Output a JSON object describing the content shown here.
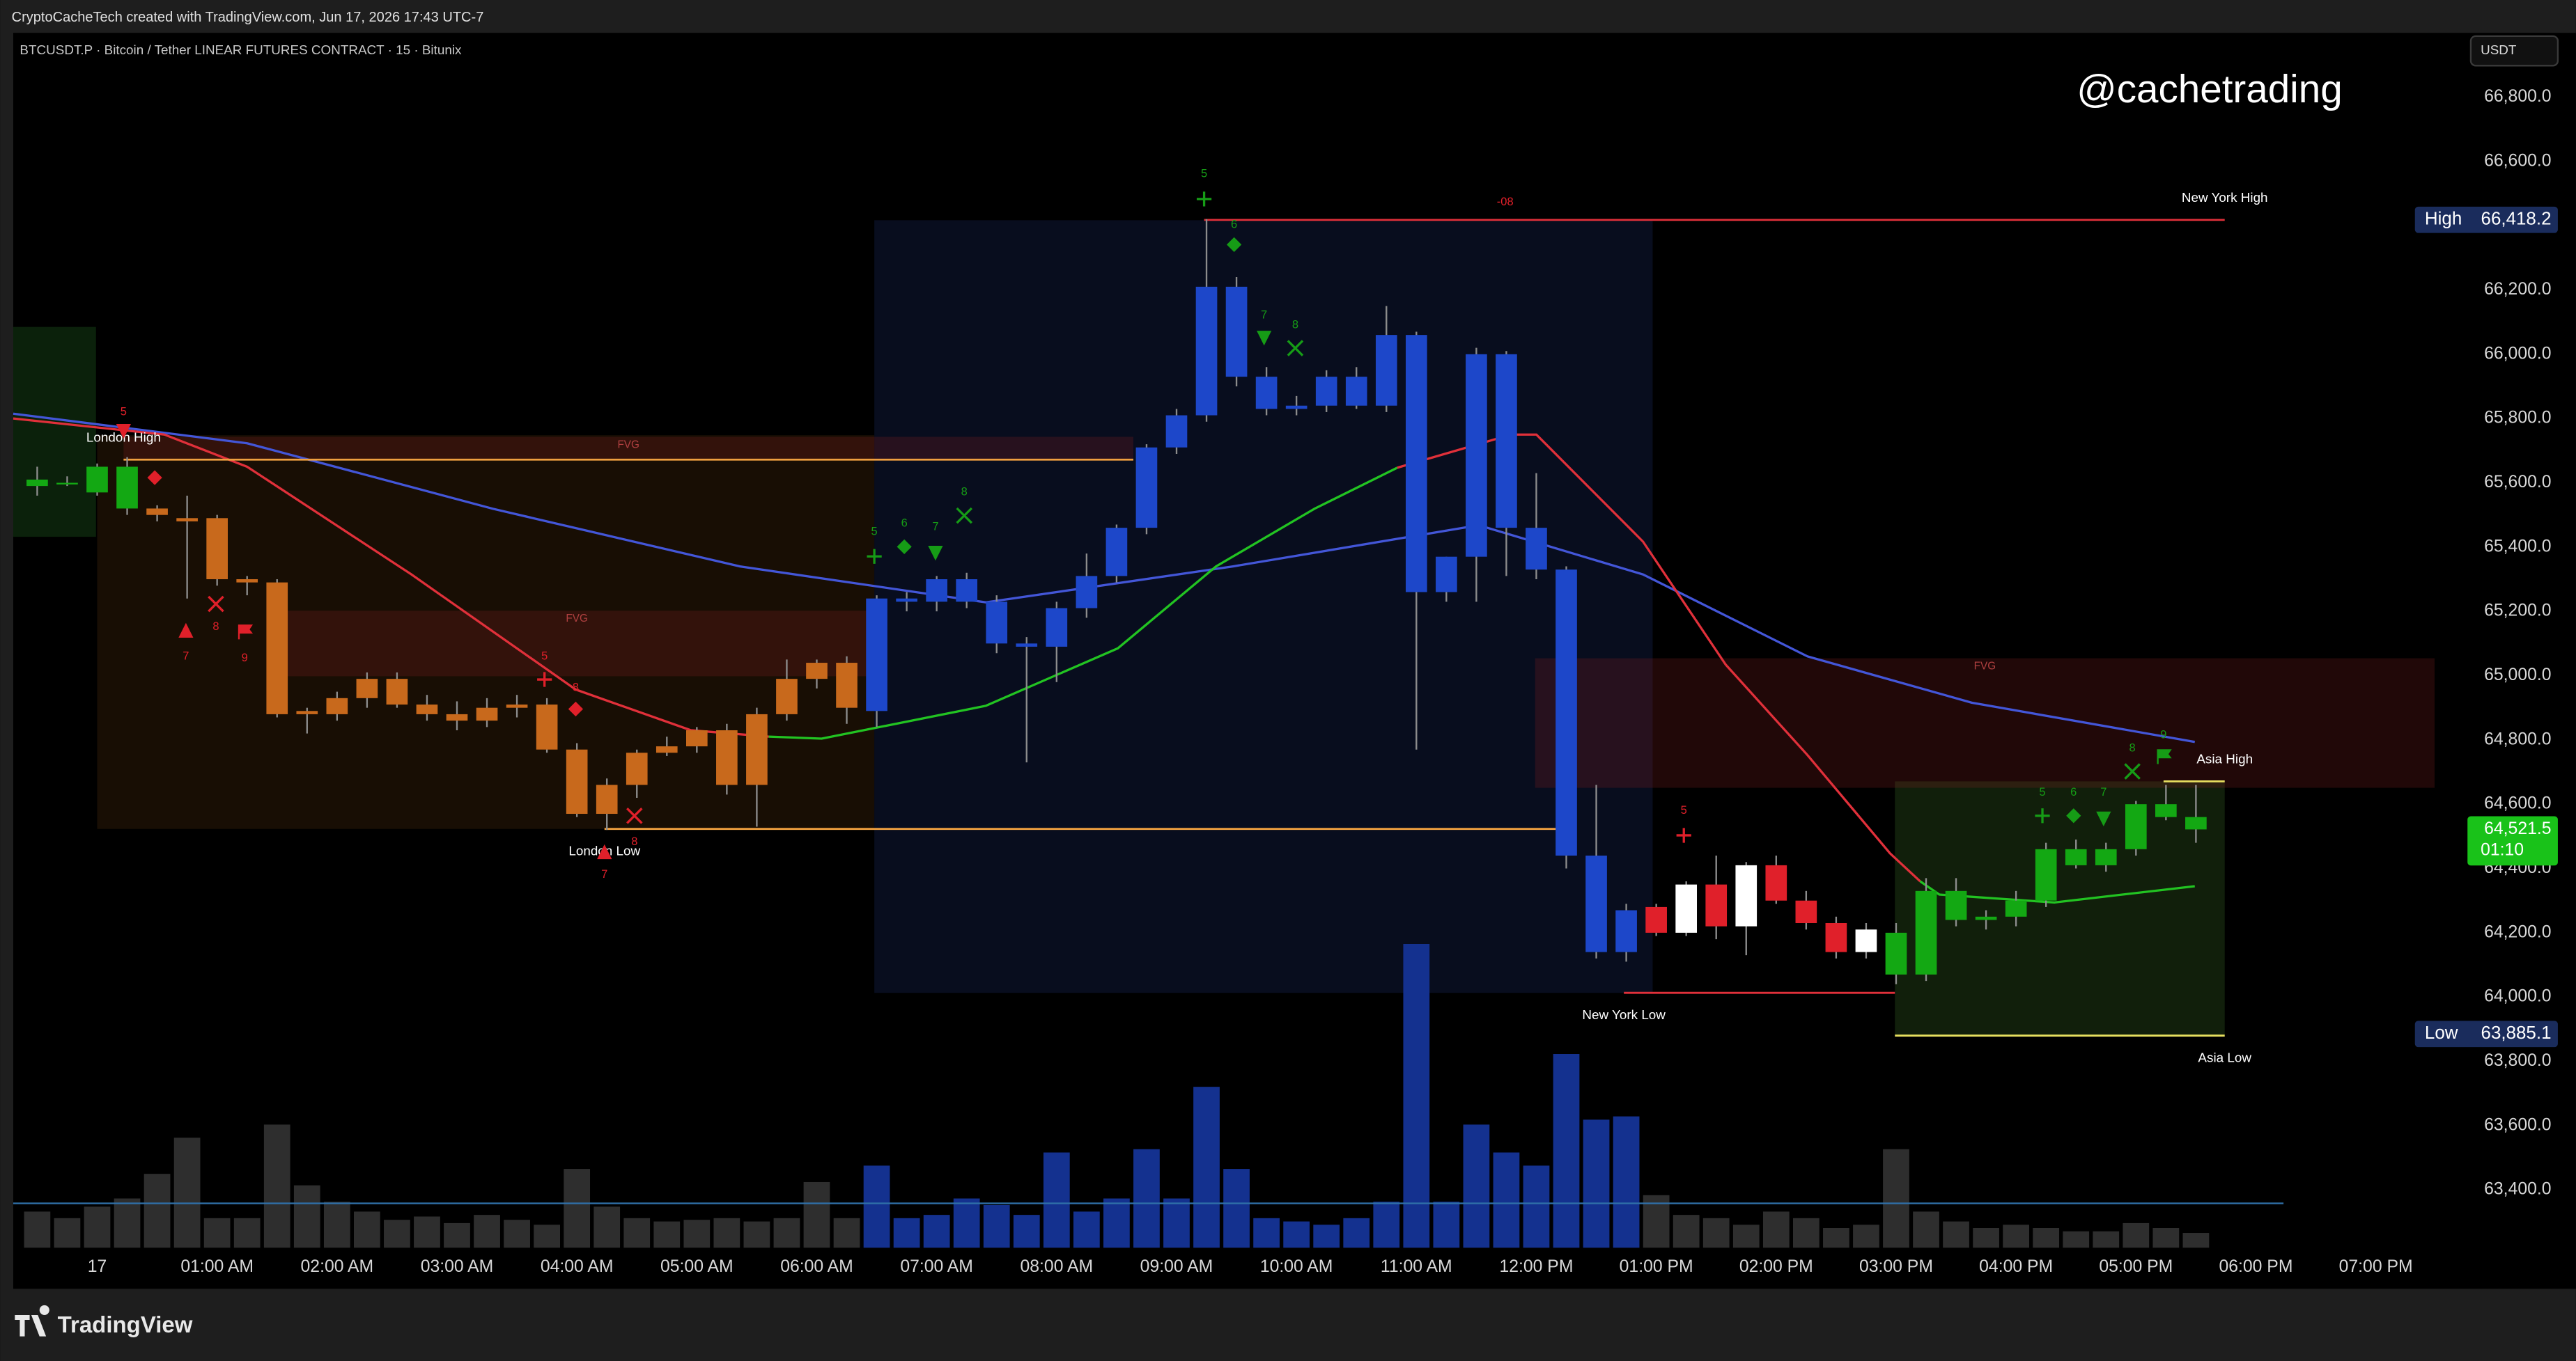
{
  "header": {
    "credit": "CryptoCacheTech created with TradingView.com, Jun 17, 2026 17:43 UTC-7",
    "footer_brand": "TradingView"
  },
  "chart_data": {
    "type": "candlestick",
    "title": "BTCUSDT.P · Bitcoin / Tether LINEAR FUTURES CONTRACT · 15 · Bitunix",
    "watermark": "@cachetrading",
    "currency": "USDT",
    "x": [
      -0.5,
      -0.25,
      0,
      0.25,
      0.5,
      0.75,
      1,
      1.25,
      1.5,
      1.75,
      2,
      2.25,
      2.5,
      2.75,
      3,
      3.25,
      3.5,
      3.75,
      4,
      4.25,
      4.5,
      4.75,
      5,
      5.25,
      5.5,
      5.75,
      6,
      6.25,
      6.5,
      6.75,
      7,
      7.25,
      7.5,
      7.75,
      8,
      8.25,
      8.5,
      8.75,
      9,
      9.25,
      9.5,
      9.75,
      10,
      10.25,
      10.5,
      10.75,
      11,
      11.25,
      11.5,
      11.75,
      12,
      12.25,
      12.5,
      12.75,
      13,
      13.25,
      13.5,
      13.75,
      14,
      14.25,
      14.5,
      14.75,
      15,
      15.25,
      15.5,
      15.75,
      16,
      16.25,
      16.5,
      16.75,
      17,
      17.25,
      17.5
    ],
    "open": [
      65590,
      65600,
      65570,
      65650,
      65520,
      65490,
      65490,
      65300,
      65290,
      64880,
      64880,
      64930,
      64990,
      64910,
      64880,
      64860,
      64900,
      64910,
      64770,
      64570,
      64660,
      64760,
      64780,
      64830,
      64660,
      64880,
      64990,
      64900,
      64890,
      65240,
      65230,
      65300,
      65230,
      65100,
      65090,
      65210,
      65310,
      65460,
      65710,
      65810,
      66210,
      65930,
      65830,
      65840,
      65930,
      65840,
      66060,
      65260,
      65370,
      66000,
      65460,
      65330,
      64440,
      64140,
      64280,
      64200,
      64350,
      64220,
      64410,
      64300,
      64230,
      64140,
      64200,
      64070,
      64330,
      64240,
      64250,
      64300,
      64410,
      64410,
      64460,
      64600,
      64560
    ],
    "high": [
      65650,
      65620,
      65660,
      65680,
      65530,
      65560,
      65500,
      65310,
      65300,
      64900,
      64950,
      65010,
      65010,
      64940,
      64920,
      64930,
      64940,
      64930,
      64790,
      64680,
      64770,
      64810,
      64840,
      64850,
      64900,
      65050,
      65050,
      65060,
      65250,
      65260,
      65310,
      65320,
      65250,
      65120,
      65230,
      65380,
      65470,
      65720,
      65830,
      66420,
      66240,
      65960,
      65870,
      65950,
      65960,
      66150,
      66070,
      65370,
      66020,
      66010,
      65630,
      65340,
      64660,
      64290,
      64290,
      64360,
      64440,
      64420,
      64440,
      64330,
      64250,
      64230,
      64230,
      64370,
      64370,
      64270,
      64330,
      64480,
      64490,
      64480,
      64610,
      64660,
      64660
    ],
    "low": [
      65560,
      65590,
      65560,
      65500,
      65480,
      65240,
      65280,
      65250,
      64870,
      64820,
      64860,
      64900,
      64900,
      64860,
      64830,
      64840,
      64870,
      64760,
      64560,
      64520,
      64620,
      64750,
      64760,
      64630,
      64530,
      64860,
      64960,
      64850,
      64840,
      65200,
      65200,
      65210,
      65070,
      64730,
      64980,
      65180,
      65290,
      65440,
      65690,
      65790,
      65900,
      65810,
      65810,
      65820,
      65830,
      65820,
      64770,
      65230,
      65230,
      65310,
      65300,
      64400,
      64120,
      64110,
      64190,
      64190,
      64180,
      64130,
      64290,
      64210,
      64120,
      64120,
      64040,
      64050,
      64220,
      64210,
      64220,
      64280,
      64400,
      64390,
      64440,
      64550,
      64480
    ],
    "close": [
      65610,
      65600,
      65650,
      65520,
      65500,
      65480,
      65300,
      65290,
      64880,
      64890,
      64930,
      64990,
      64910,
      64880,
      64860,
      64900,
      64910,
      64770,
      64570,
      64660,
      64760,
      64780,
      64830,
      64660,
      64880,
      64990,
      65040,
      65040,
      65240,
      65230,
      65300,
      65230,
      65100,
      65090,
      65210,
      65310,
      65460,
      65710,
      65810,
      66210,
      65930,
      65830,
      65840,
      65930,
      65840,
      66060,
      65260,
      65370,
      66000,
      65460,
      65330,
      64440,
      64140,
      64270,
      64200,
      64350,
      64220,
      64410,
      64300,
      64230,
      64140,
      64210,
      64070,
      64330,
      64240,
      64250,
      64300,
      64460,
      64460,
      64460,
      64600,
      64560,
      64521.5
    ],
    "colors": [
      "#13a813",
      "#13a813",
      "#13a813",
      "#13a813",
      "#c8691c",
      "#c8691c",
      "#c8691c",
      "#c8691c",
      "#c8691c",
      "#c8691c",
      "#c8691c",
      "#c8691c",
      "#c8691c",
      "#c8691c",
      "#c8691c",
      "#c8691c",
      "#c8691c",
      "#c8691c",
      "#c8691c",
      "#c8691c",
      "#c8691c",
      "#c8691c",
      "#c8691c",
      "#c8691c",
      "#c8691c",
      "#c8691c",
      "#c8691c",
      "#c8691c",
      "#1d47c9",
      "#1d47c9",
      "#1d47c9",
      "#1d47c9",
      "#1d47c9",
      "#1d47c9",
      "#1d47c9",
      "#1d47c9",
      "#1d47c9",
      "#1d47c9",
      "#1d47c9",
      "#1d47c9",
      "#1d47c9",
      "#1d47c9",
      "#1d47c9",
      "#1d47c9",
      "#1d47c9",
      "#1d47c9",
      "#1d47c9",
      "#1d47c9",
      "#1d47c9",
      "#1d47c9",
      "#1d47c9",
      "#1d47c9",
      "#1d47c9",
      "#1d47c9",
      "#e0202a",
      "#ffffff",
      "#e0202a",
      "#ffffff",
      "#e0202a",
      "#e0202a",
      "#e0202a",
      "#ffffff",
      "#13a813",
      "#13a813",
      "#13a813",
      "#13a813",
      "#13a813",
      "#13a813",
      "#13a813",
      "#13a813",
      "#13a813",
      "#13a813",
      "#13a813"
    ],
    "wick_color": "#8c8c8c",
    "volume": [
      22,
      18,
      25,
      30,
      45,
      67,
      18,
      18,
      75,
      38,
      28,
      22,
      17,
      19,
      15,
      20,
      17,
      14,
      48,
      25,
      18,
      16,
      17,
      18,
      16,
      18,
      40,
      18,
      50,
      18,
      20,
      30,
      26,
      20,
      58,
      22,
      30,
      60,
      30,
      98,
      48,
      18,
      16,
      14,
      18,
      28,
      185,
      28,
      75,
      58,
      50,
      118,
      78,
      80,
      32,
      20,
      18,
      14,
      22,
      18,
      12,
      14,
      60,
      22,
      16,
      12,
      14,
      12,
      10,
      10,
      15,
      12,
      9
    ],
    "volume_color": "#2e2e2e",
    "volume_highlight": {
      "when_candle": "#1d47c9",
      "color": "#14318f"
    },
    "xlim": [
      -0.7,
      19.6
    ],
    "xticks": [
      {
        "value": 0,
        "label": "17"
      },
      {
        "value": 1,
        "label": "01:00 AM"
      },
      {
        "value": 2,
        "label": "02:00 AM"
      },
      {
        "value": 3,
        "label": "03:00 AM"
      },
      {
        "value": 4,
        "label": "04:00 AM"
      },
      {
        "value": 5,
        "label": "05:00 AM"
      },
      {
        "value": 6,
        "label": "06:00 AM"
      },
      {
        "value": 7,
        "label": "07:00 AM"
      },
      {
        "value": 8,
        "label": "08:00 AM"
      },
      {
        "value": 9,
        "label": "09:00 AM"
      },
      {
        "value": 10,
        "label": "10:00 AM"
      },
      {
        "value": 11,
        "label": "11:00 AM"
      },
      {
        "value": 12,
        "label": "12:00 PM"
      },
      {
        "value": 13,
        "label": "01:00 PM"
      },
      {
        "value": 14,
        "label": "02:00 PM"
      },
      {
        "value": 15,
        "label": "03:00 PM"
      },
      {
        "value": 16,
        "label": "04:00 PM"
      },
      {
        "value": 17,
        "label": "05:00 PM"
      },
      {
        "value": 18,
        "label": "06:00 PM"
      },
      {
        "value": 19,
        "label": "07:00 PM"
      }
    ],
    "ylim": [
      63220,
      67000
    ],
    "yticks": [
      {
        "value": 63400,
        "label": "63,400.0"
      },
      {
        "value": 63600,
        "label": "63,600.0"
      },
      {
        "value": 63800,
        "label": "63,800.0"
      },
      {
        "value": 64000,
        "label": "64,000.0"
      },
      {
        "value": 64200,
        "label": "64,200.0"
      },
      {
        "value": 64400,
        "label": "64,400.0"
      },
      {
        "value": 64600,
        "label": "64,600.0"
      },
      {
        "value": 64800,
        "label": "64,800.0"
      },
      {
        "value": 65000,
        "label": "65,000.0"
      },
      {
        "value": 65200,
        "label": "65,200.0"
      },
      {
        "value": 65400,
        "label": "65,400.0"
      },
      {
        "value": 65600,
        "label": "65,600.0"
      },
      {
        "value": 65800,
        "label": "65,800.0"
      },
      {
        "value": 66000,
        "label": "66,000.0"
      },
      {
        "value": 66200,
        "label": "66,200.0"
      },
      {
        "value": 66400,
        "label": "66,400.0"
      },
      {
        "value": 66600,
        "label": "66,600.0"
      },
      {
        "value": 66800,
        "label": "66,800.0"
      }
    ],
    "grid": false,
    "overlays": [
      {
        "color": "#4356d8",
        "x": [
          -0.7,
          1.25,
          3.3,
          5.36,
          7.41,
          9.47,
          11.52,
          12.89,
          14.26,
          15.63,
          17.49
        ],
        "values": [
          65815,
          65723,
          65519,
          65340,
          65228,
          65340,
          65468,
          65315,
          65060,
          64916,
          64794
        ]
      },
      {
        "color": "#e0303a",
        "x": [
          -0.7,
          0.56,
          1.25,
          2.62,
          3.99,
          4.95,
          5.6
        ],
        "values": [
          65800,
          65750,
          65650,
          65315,
          64957,
          64830,
          64810
        ]
      },
      {
        "color": "#22c322",
        "x": [
          5.6,
          6.04,
          7.41,
          8.51,
          9.33,
          10.15,
          10.84
        ],
        "values": [
          64810,
          64804,
          64906,
          65085,
          65340,
          65519,
          65647
        ]
      },
      {
        "color": "#e0303a",
        "x": [
          10.84,
          11.79,
          12,
          12.89,
          13.58,
          14.26,
          14.95,
          15.2
        ],
        "values": [
          65647,
          65750,
          65750,
          65417,
          65034,
          64753,
          64447,
          64360
        ]
      },
      {
        "color": "#22c322",
        "x": [
          15.2,
          15.36,
          16.32,
          17.49
        ],
        "values": [
          64360,
          64319,
          64294,
          64345
        ]
      }
    ],
    "zones": [
      {
        "x": [
          -0.7,
          -0.01
        ],
        "y": [
          65432,
          66085
        ],
        "color": "rgba(40,120,40,0.28)"
      },
      {
        "x": [
          0,
          6.48
        ],
        "y": [
          64523,
          65748
        ],
        "color": "rgba(120,70,20,0.2)"
      },
      {
        "x": [
          6.48,
          12.97
        ],
        "y": [
          64013,
          66417
        ],
        "color": "rgba(30,50,120,0.25)"
      },
      {
        "x": [
          14.99,
          17.74
        ],
        "y": [
          63880,
          64671
        ],
        "color": "rgba(60,110,40,0.28)"
      },
      {
        "x": [
          11.99,
          19.49
        ],
        "y": [
          64651,
          65054
        ],
        "color": "rgba(130,30,30,0.25)",
        "label": "FVG"
      },
      {
        "x": [
          0.22,
          8.64
        ],
        "y": [
          65672,
          65743
        ],
        "color": "rgba(130,30,30,0.25)",
        "label": "FVG"
      },
      {
        "x": [
          1.52,
          6.48
        ],
        "y": [
          64998,
          65202
        ],
        "color": "rgba(130,30,30,0.25)",
        "label": "FVG"
      }
    ],
    "levels": [
      {
        "label": "London High",
        "value": 65672,
        "x": [
          0.22,
          8.64
        ],
        "color": "#f0a040",
        "anchor": "start",
        "side": "above"
      },
      {
        "label": "London Low",
        "value": 64523,
        "x": [
          4.23,
          12.18
        ],
        "color": "#f0a040",
        "anchor": "start",
        "side": "below"
      },
      {
        "label": "New York High",
        "value": 66418,
        "x": [
          9.23,
          17.74
        ],
        "color": "#e0303a",
        "anchor": "end",
        "side": "above"
      },
      {
        "label": "New York Low",
        "value": 64013,
        "x": [
          12.73,
          14.99
        ],
        "color": "#e0303a",
        "anchor": "start",
        "side": "below"
      },
      {
        "label": "Asia High",
        "value": 64671,
        "x": [
          17.23,
          17.74
        ],
        "color": "#e8e060",
        "anchor": "end",
        "side": "above"
      },
      {
        "label": "Asia Low",
        "value": 63880,
        "x": [
          14.99,
          17.74
        ],
        "color": "#e8e060",
        "anchor": "end",
        "side": "below"
      }
    ],
    "signals": [
      {
        "x": 0.22,
        "label": "5",
        "label_price": 65820,
        "shape": "tri-down",
        "shape_price": 65760,
        "color": "#e0202a"
      },
      {
        "x": 0.48,
        "shape": "diamond",
        "shape_price": 65616,
        "color": "#e0202a"
      },
      {
        "x": 0.74,
        "label": "7",
        "label_price": 65059,
        "shape": "tri-up",
        "shape_price": 65141,
        "color": "#e0202a"
      },
      {
        "x": 0.99,
        "label": "8",
        "label_price": 65151,
        "shape": "x",
        "shape_price": 65223,
        "color": "#e0202a"
      },
      {
        "x": 1.23,
        "label": "9",
        "label_price": 65054,
        "shape": "flag",
        "shape_price": 65136,
        "color": "#e0202a"
      },
      {
        "x": 3.73,
        "label": "5",
        "label_price": 65059,
        "shape": "plus",
        "shape_price": 64988,
        "color": "#e0202a"
      },
      {
        "x": 3.99,
        "label": "8",
        "label_price": 64962,
        "shape": "diamond",
        "shape_price": 64896,
        "color": "#e0202a"
      },
      {
        "x": 4.23,
        "label": "7",
        "label_price": 64380,
        "shape": "tri-up",
        "shape_price": 64452,
        "color": "#e0202a"
      },
      {
        "x": 4.48,
        "label": "8",
        "label_price": 64482,
        "shape": "x",
        "shape_price": 64564,
        "color": "#e0202a"
      },
      {
        "x": 13.23,
        "label": "5",
        "label_price": 64579,
        "shape": "plus",
        "shape_price": 64503,
        "color": "#e0202a"
      },
      {
        "x": 11.74,
        "label": "-08",
        "label_price": 66473,
        "color": "#e0202a"
      },
      {
        "x": 9.23,
        "label": "5",
        "label_price": 66560,
        "shape": "plus",
        "shape_price": 66483,
        "color": "#169c16"
      },
      {
        "x": 9.48,
        "label": "6",
        "label_price": 66402,
        "shape": "diamond",
        "shape_price": 66341,
        "color": "#169c16"
      },
      {
        "x": 9.73,
        "label": "7",
        "label_price": 66121,
        "shape": "tri-down",
        "shape_price": 66050,
        "color": "#169c16"
      },
      {
        "x": 9.99,
        "label": "8",
        "label_price": 66090,
        "shape": "x",
        "shape_price": 66019,
        "color": "#169c16"
      },
      {
        "x": 6.48,
        "label": "5",
        "label_price": 65447,
        "shape": "plus",
        "shape_price": 65371,
        "color": "#169c16"
      },
      {
        "x": 6.73,
        "label": "6",
        "label_price": 65473,
        "shape": "diamond",
        "shape_price": 65401,
        "color": "#169c16"
      },
      {
        "x": 6.99,
        "label": "7",
        "label_price": 65462,
        "shape": "tri-down",
        "shape_price": 65381,
        "color": "#169c16"
      },
      {
        "x": 7.23,
        "label": "8",
        "label_price": 65570,
        "shape": "x",
        "shape_price": 65498,
        "color": "#169c16"
      },
      {
        "x": 16.22,
        "label": "5",
        "label_price": 64636,
        "shape": "plus",
        "shape_price": 64564,
        "color": "#169c16"
      },
      {
        "x": 16.48,
        "label": "6",
        "label_price": 64636,
        "shape": "diamond",
        "shape_price": 64564,
        "color": "#169c16"
      },
      {
        "x": 16.73,
        "label": "7",
        "label_price": 64636,
        "shape": "tri-down",
        "shape_price": 64554,
        "color": "#169c16"
      },
      {
        "x": 16.97,
        "label": "8",
        "label_price": 64773,
        "shape": "x",
        "shape_price": 64702,
        "color": "#169c16"
      },
      {
        "x": 17.23,
        "label": "9",
        "label_price": 64814,
        "shape": "flag",
        "shape_price": 64748,
        "color": "#169c16"
      }
    ],
    "price_tags": [
      {
        "label": "High",
        "value": 66418.2,
        "value_label": "66,418.2",
        "color": "#1a2c5c"
      },
      {
        "label": "Low",
        "value": 63885.1,
        "value_label": "63,885.1",
        "color": "#1a2c5c"
      }
    ],
    "last_price": {
      "value": 64521.5,
      "value_label": "64,521.5",
      "countdown": "01:10",
      "color": "#19c219"
    }
  }
}
